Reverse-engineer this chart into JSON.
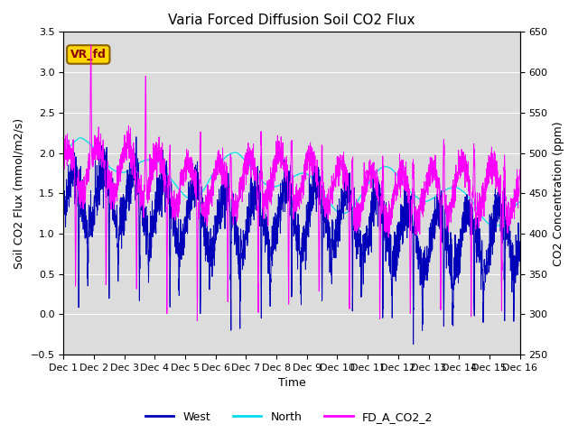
{
  "title": "Varia Forced Diffusion Soil CO2 Flux",
  "xlabel": "Time",
  "ylabel_left": "Soil CO2 Flux (mmol/m2/s)",
  "ylabel_right": "CO2 Concentration (ppm)",
  "ylim_left": [
    -0.5,
    3.5
  ],
  "ylim_right": [
    250,
    650
  ],
  "xlim": [
    0,
    15
  ],
  "xtick_positions": [
    0,
    1,
    2,
    3,
    4,
    5,
    6,
    7,
    8,
    9,
    10,
    11,
    12,
    13,
    14,
    15
  ],
  "xtick_labels": [
    "Dec 1",
    "Dec 2",
    "Dec 3",
    "Dec 4",
    "Dec 5",
    "Dec 6",
    "Dec 7",
    "Dec 8",
    "Dec 9",
    "Dec 10",
    "Dec 11",
    "Dec 12",
    "Dec 13",
    "Dec 14",
    "Dec 15",
    "Dec 16"
  ],
  "color_west": "#0000BB",
  "color_north": "#00DDEE",
  "color_co2": "#FF00FF",
  "legend_labels": [
    "West",
    "North",
    "FD_A_CO2_2"
  ],
  "annotation_text": "VR_fd",
  "annotation_bg": "#FFD700",
  "annotation_border": "#8B6000",
  "bg_color": "#DCDCDC",
  "grid_color": "#FFFFFF",
  "title_fontsize": 11,
  "label_fontsize": 9,
  "tick_fontsize": 8,
  "legend_fontsize": 9
}
